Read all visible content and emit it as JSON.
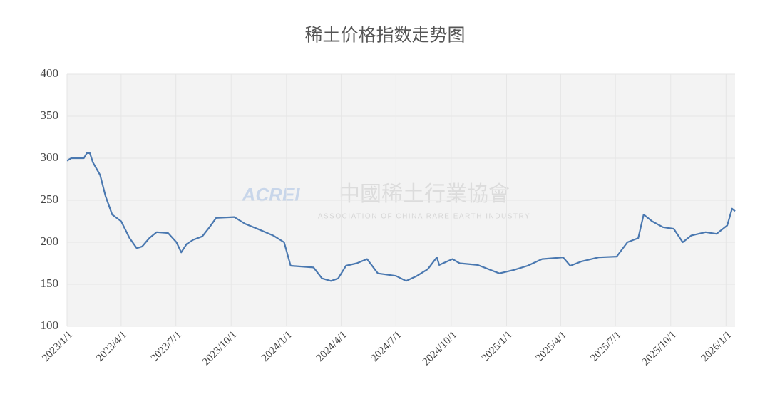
{
  "chart_data": {
    "type": "line",
    "title": "稀土价格指数走势图",
    "watermark": "ACREI",
    "watermark_cn": "中國稀土行業協會",
    "watermark_en": "ASSOCIATION OF CHINA RARE EARTH INDUSTRY",
    "x": [
      "2023/1/1",
      "2023/1/8",
      "2023/1/29",
      "2023/2/3",
      "2023/2/8",
      "2023/2/13",
      "2023/2/25",
      "2023/3/6",
      "2023/3/17",
      "2023/4/1",
      "2023/4/15",
      "2023/4/27",
      "2023/5/6",
      "2023/5/18",
      "2023/5/30",
      "2023/6/18",
      "2023/7/2",
      "2023/7/10",
      "2023/7/19",
      "2023/7/30",
      "2023/8/14",
      "2023/8/26",
      "2023/9/6",
      "2023/10/6",
      "2023/10/24",
      "2023/11/17",
      "2023/12/10",
      "2023/12/28",
      "2024/1/8",
      "2024/2/15",
      "2024/2/29",
      "2024/3/15",
      "2024/3/27",
      "2024/4/9",
      "2024/4/27",
      "2024/5/14",
      "2024/6/1",
      "2024/7/1",
      "2024/7/18",
      "2024/8/5",
      "2024/8/23",
      "2024/9/7",
      "2024/9/11",
      "2024/10/3",
      "2024/10/15",
      "2024/11/14",
      "2024/12/20",
      "2025/1/13",
      "2025/2/5",
      "2025/3/1",
      "2025/4/5",
      "2025/4/17",
      "2025/5/5",
      "2025/6/3",
      "2025/7/3",
      "2025/7/21",
      "2025/8/8",
      "2025/8/17",
      "2025/8/31",
      "2025/9/18",
      "2025/10/6",
      "2025/10/21",
      "2025/11/4",
      "2025/11/28",
      "2025/12/16",
      "2026/1/3",
      "2026/1/11",
      "2026/1/16"
    ],
    "series": [
      {
        "name": "稀土价格指数",
        "color": "#4a78b0",
        "values": [
          297,
          300,
          300,
          306,
          306,
          295,
          280,
          255,
          233,
          225,
          205,
          193,
          195,
          205,
          212,
          211,
          200,
          188,
          198,
          203,
          207,
          218,
          229,
          230,
          222,
          215,
          208,
          200,
          172,
          170,
          157,
          154,
          157,
          172,
          175,
          180,
          163,
          160,
          154,
          160,
          168,
          182,
          173,
          180,
          175,
          173,
          163,
          167,
          172,
          180,
          182,
          172,
          177,
          182,
          183,
          200,
          205,
          233,
          225,
          218,
          216,
          200,
          208,
          212,
          210,
          220,
          240,
          237
        ]
      }
    ],
    "xlim": [
      "2023/1/1",
      "2026/1/16"
    ],
    "xticks": [
      "2023/1/1",
      "2023/4/1",
      "2023/7/1",
      "2023/10/1",
      "2024/1/1",
      "2024/4/1",
      "2024/7/1",
      "2024/10/1",
      "2025/1/1",
      "2025/4/1",
      "2025/7/1",
      "2025/10/1",
      "2026/1/1"
    ],
    "ylim": [
      100,
      400
    ],
    "yticks": [
      100,
      150,
      200,
      250,
      300,
      350,
      400
    ],
    "grid": true
  }
}
